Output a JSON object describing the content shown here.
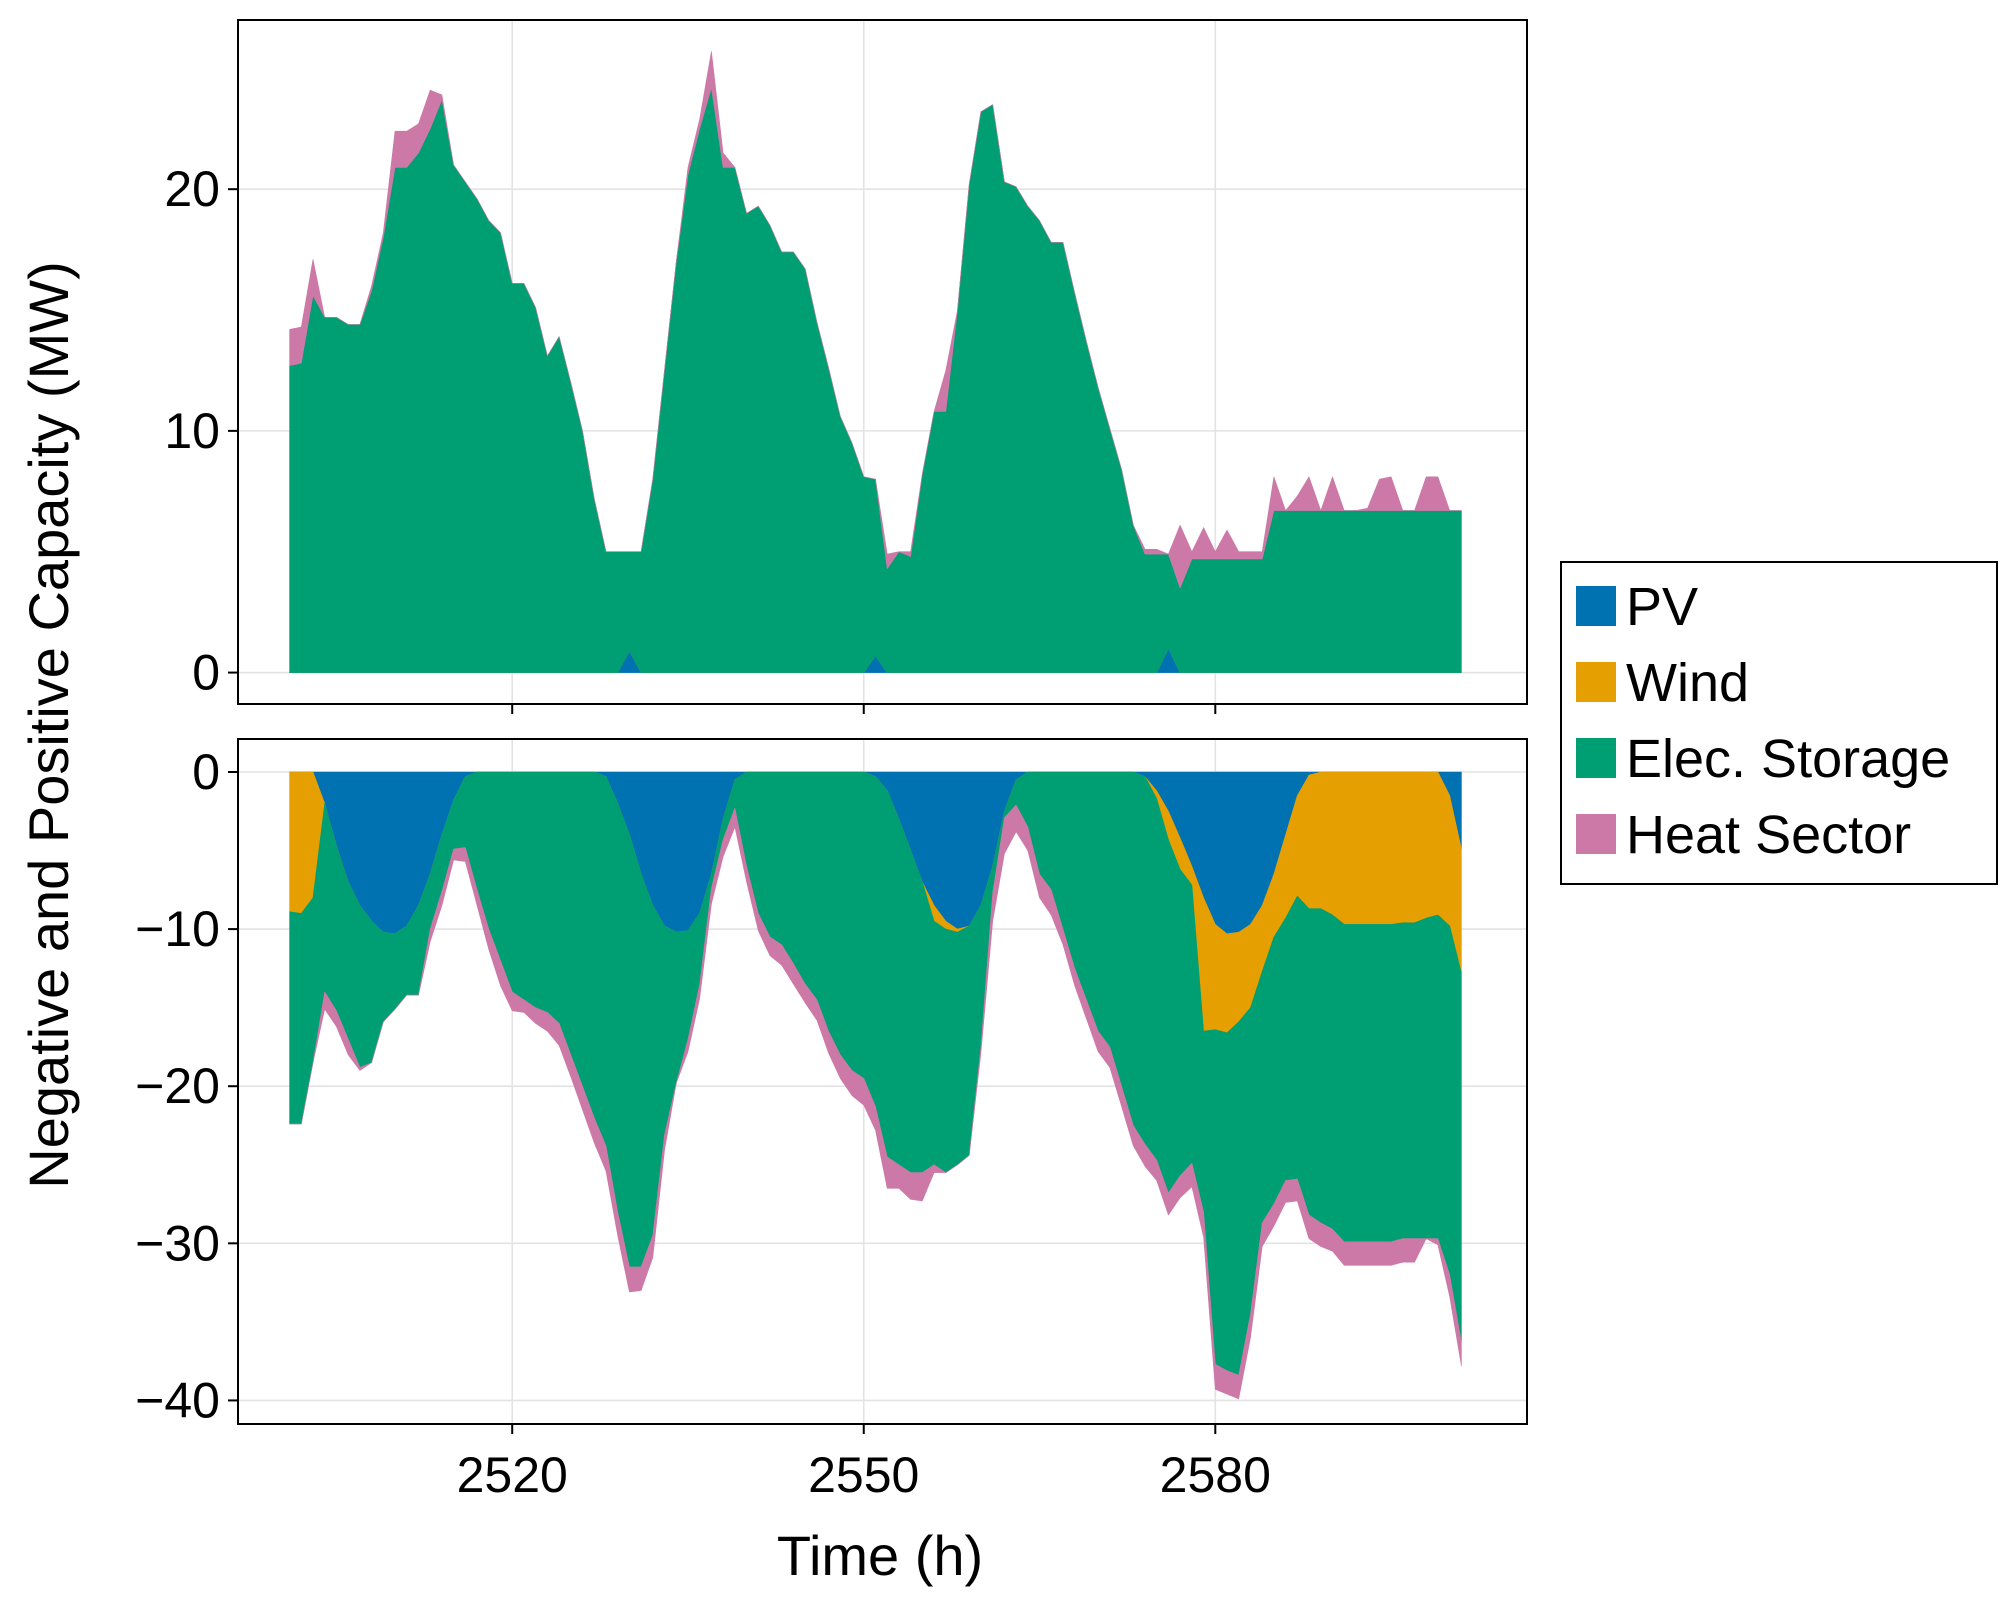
{
  "chart_data": [
    {
      "panel": "upper",
      "type": "area",
      "stacked": true,
      "xlabel": "Time (h)",
      "ylabel": "Negative and Positive Capacity (MW)",
      "xlim": [
        2496.6,
        2606.6
      ],
      "ylim": [
        -1.3,
        27
      ],
      "yticks": [
        0,
        10,
        20
      ],
      "xticks": [
        2520,
        2550,
        2580
      ],
      "grid": true,
      "x": [
        2501,
        2502,
        2503,
        2504,
        2505,
        2506,
        2507,
        2508,
        2509,
        2510,
        2511,
        2512,
        2513,
        2514,
        2515,
        2516,
        2517,
        2518,
        2519,
        2520,
        2521,
        2522,
        2523,
        2524,
        2525,
        2526,
        2527,
        2528,
        2529,
        2530,
        2531,
        2532,
        2533,
        2534,
        2535,
        2536,
        2537,
        2538,
        2539,
        2540,
        2541,
        2542,
        2543,
        2544,
        2545,
        2546,
        2547,
        2548,
        2549,
        2550,
        2551,
        2552,
        2553,
        2554,
        2555,
        2556,
        2557,
        2558,
        2559,
        2560,
        2561,
        2562,
        2563,
        2564,
        2565,
        2566,
        2567,
        2568,
        2569,
        2570,
        2571,
        2572,
        2573,
        2574,
        2575,
        2576,
        2577,
        2578,
        2579,
        2580,
        2581,
        2582,
        2583,
        2584,
        2585,
        2586,
        2587,
        2588,
        2589,
        2590,
        2591,
        2592,
        2593,
        2594,
        2595,
        2596,
        2597,
        2598,
        2599,
        2600,
        2601
      ],
      "series": [
        {
          "name": "PV",
          "color": "#0072B2",
          "values": [
            0,
            0,
            0,
            0,
            0,
            0,
            0,
            0,
            0,
            0,
            0,
            0,
            0,
            0,
            0,
            0,
            0,
            0,
            0,
            0,
            0,
            0,
            0,
            0,
            0,
            0,
            0,
            0,
            0,
            0.9,
            0,
            0,
            0,
            0,
            0,
            0,
            0,
            0,
            0,
            0,
            0,
            0,
            0,
            0,
            0,
            0,
            0,
            0,
            0,
            0,
            0.7,
            0,
            0,
            0,
            0,
            0,
            0,
            0,
            0,
            0,
            0,
            0,
            0,
            0,
            0,
            0,
            0,
            0,
            0,
            0,
            0,
            0,
            0,
            0,
            0,
            1.0,
            0,
            0,
            0,
            0,
            0,
            0,
            0,
            0,
            0,
            0,
            0,
            0,
            0,
            0,
            0,
            0,
            0,
            0,
            0,
            0,
            0,
            0,
            0,
            0,
            0
          ]
        },
        {
          "name": "Wind",
          "color": "#E69F00",
          "values": [
            0,
            0,
            0,
            0,
            0,
            0,
            0,
            0,
            0,
            0,
            0,
            0,
            0,
            0,
            0,
            0,
            0,
            0,
            0,
            0,
            0,
            0,
            0,
            0,
            0,
            0,
            0,
            0,
            0,
            0,
            0,
            0,
            0,
            0,
            0,
            0,
            0,
            0,
            0,
            0,
            0,
            0,
            0,
            0,
            0,
            0,
            0,
            0,
            0,
            0,
            0,
            0,
            0,
            0,
            0,
            0,
            0,
            0,
            0,
            0,
            0,
            0,
            0,
            0,
            0,
            0,
            0,
            0,
            0,
            0,
            0,
            0,
            0,
            0,
            0,
            0,
            0,
            0,
            0,
            0,
            0,
            0,
            0,
            0,
            0,
            0,
            0,
            0,
            0,
            0,
            0,
            0,
            0,
            0,
            0,
            0,
            0,
            0,
            0,
            0,
            0
          ]
        },
        {
          "name": "Elec. Storage",
          "color": "#009E73",
          "values": [
            12.7,
            12.8,
            15.6,
            14.7,
            14.7,
            14.4,
            14.4,
            15.8,
            18.0,
            20.9,
            20.9,
            21.5,
            22.5,
            23.7,
            21.0,
            20.3,
            19.6,
            18.7,
            18.2,
            16.1,
            16.1,
            15.1,
            13.1,
            13.9,
            12.0,
            10.0,
            7.2,
            5.0,
            5.0,
            4.1,
            5.0,
            8.0,
            12.5,
            17.0,
            20.6,
            22.5,
            24.2,
            20.9,
            20.9,
            19.0,
            19.3,
            18.5,
            17.4,
            17.4,
            16.7,
            14.5,
            12.6,
            10.6,
            9.5,
            8.1,
            7.3,
            4.3,
            5.0,
            4.8,
            8.2,
            10.8,
            10.8,
            15.0,
            20.2,
            23.2,
            23.5,
            20.3,
            20.1,
            19.3,
            18.7,
            17.8,
            17.8,
            15.7,
            13.7,
            11.8,
            10.1,
            8.4,
            6.1,
            4.9,
            4.9,
            3.9,
            3.5,
            4.7,
            4.7,
            4.7,
            4.7,
            4.7,
            4.7,
            4.7,
            6.7,
            6.7,
            6.7,
            6.7,
            6.7,
            6.7,
            6.7,
            6.7,
            6.7,
            6.7,
            6.7,
            6.7,
            6.7,
            6.7,
            6.7,
            6.7,
            6.7
          ]
        },
        {
          "name": "Heat Sector",
          "color": "#CC79A7",
          "values": [
            1.5,
            1.5,
            1.5,
            0,
            0,
            0,
            0,
            0.2,
            0.2,
            1.5,
            1.5,
            1.2,
            1.6,
            0.2,
            0,
            0,
            0,
            0,
            0,
            0,
            0,
            0,
            0,
            0,
            0,
            0,
            0,
            0,
            0,
            0,
            0,
            0,
            0,
            0,
            0.3,
            0.4,
            1.5,
            0.6,
            0,
            0,
            0,
            0,
            0,
            0,
            0,
            0,
            0,
            0,
            0,
            0,
            0,
            0.6,
            0,
            0.2,
            0,
            0,
            1.7,
            0,
            0,
            0,
            0,
            0,
            0,
            0,
            0,
            0,
            0,
            0,
            0,
            0,
            0,
            0,
            0,
            0.2,
            0.2,
            0,
            2.6,
            0.3,
            1.3,
            0.3,
            1.2,
            0.3,
            0.3,
            0.3,
            1.4,
            0,
            0.6,
            1.4,
            0,
            1.4,
            0,
            0,
            0.1,
            1.3,
            1.4,
            0,
            0,
            1.4,
            1.4,
            0,
            0
          ]
        }
      ]
    },
    {
      "panel": "lower",
      "type": "area",
      "stacked": true,
      "xlabel": "Time (h)",
      "ylabel": "Negative and Positive Capacity (MW)",
      "xlim": [
        2496.6,
        2606.6
      ],
      "ylim": [
        -41.5,
        2.1
      ],
      "yticks": [
        0,
        -10,
        -20,
        -30,
        -40
      ],
      "xticks": [
        2520,
        2550,
        2580
      ],
      "grid": true,
      "x": [
        2501,
        2502,
        2503,
        2504,
        2505,
        2506,
        2507,
        2508,
        2509,
        2510,
        2511,
        2512,
        2513,
        2514,
        2515,
        2516,
        2517,
        2518,
        2519,
        2520,
        2521,
        2522,
        2523,
        2524,
        2525,
        2526,
        2527,
        2528,
        2529,
        2530,
        2531,
        2532,
        2533,
        2534,
        2535,
        2536,
        2537,
        2538,
        2539,
        2540,
        2541,
        2542,
        2543,
        2544,
        2545,
        2546,
        2547,
        2548,
        2549,
        2550,
        2551,
        2552,
        2553,
        2554,
        2555,
        2556,
        2557,
        2558,
        2559,
        2560,
        2561,
        2562,
        2563,
        2564,
        2565,
        2566,
        2567,
        2568,
        2569,
        2570,
        2571,
        2572,
        2573,
        2574,
        2575,
        2576,
        2577,
        2578,
        2579,
        2580,
        2581,
        2582,
        2583,
        2584,
        2585,
        2586,
        2587,
        2588,
        2589,
        2590,
        2591,
        2592,
        2593,
        2594,
        2595,
        2596,
        2597,
        2598,
        2599,
        2600,
        2601
      ],
      "series": [
        {
          "name": "PV",
          "color": "#0072B2",
          "values": [
            0,
            0,
            0,
            -2.0,
            -4.7,
            -7.0,
            -8.5,
            -9.5,
            -10.2,
            -10.3,
            -9.8,
            -8.5,
            -6.5,
            -4.0,
            -1.8,
            -0.3,
            0,
            0,
            0,
            0,
            0,
            0,
            0,
            0,
            0,
            0,
            0,
            -0.3,
            -2.0,
            -4.0,
            -6.5,
            -8.5,
            -9.8,
            -10.2,
            -10.1,
            -9.0,
            -6.5,
            -3.0,
            -0.5,
            0,
            0,
            0,
            0,
            0,
            0,
            0,
            0,
            0,
            0,
            0,
            -0.3,
            -1.2,
            -3.0,
            -5.0,
            -7.0,
            -8.5,
            -9.5,
            -10.0,
            -9.8,
            -8.5,
            -6.0,
            -2.5,
            -0.5,
            0,
            0,
            0,
            0,
            0,
            0,
            0,
            0,
            0,
            0,
            -0.3,
            -1.2,
            -2.5,
            -4.2,
            -6.0,
            -8.0,
            -9.7,
            -10.3,
            -10.2,
            -9.7,
            -8.5,
            -6.5,
            -4.0,
            -1.5,
            -0.2,
            0,
            0,
            0,
            0,
            0,
            0,
            0,
            0,
            0,
            0,
            0,
            -1.5,
            -4.9
          ]
        },
        {
          "name": "Wind",
          "color": "#E69F00",
          "values": [
            -8.9,
            -9.0,
            -8.0,
            0,
            0,
            0,
            0,
            0,
            0,
            0,
            0,
            0,
            0,
            0,
            0,
            0,
            0,
            0,
            0,
            0,
            0,
            0,
            0,
            0,
            0,
            0,
            0,
            0,
            0,
            0,
            0,
            0,
            0,
            0,
            0,
            0,
            0,
            0,
            0,
            0,
            0,
            0,
            0,
            0,
            0,
            0,
            0,
            0,
            0,
            0,
            0,
            0,
            0,
            0,
            0,
            -1.0,
            -0.5,
            -0.2,
            0,
            0,
            0,
            0,
            0,
            0,
            0,
            0,
            0,
            0,
            0,
            0,
            0,
            0,
            0,
            0,
            -0.5,
            -1.8,
            -2.0,
            -1.2,
            -8.5,
            -6.7,
            -6.3,
            -5.7,
            -5.3,
            -4.2,
            -4.0,
            -5.3,
            -6.4,
            -8.5,
            -8.7,
            -9.1,
            -9.7,
            -9.7,
            -9.7,
            -9.7,
            -9.7,
            -9.6,
            -9.6,
            -9.3,
            -9.1,
            -8.3,
            -7.9
          ]
        },
        {
          "name": "Elec. Storage",
          "color": "#009E73",
          "values": [
            -13.5,
            -13.4,
            -10.5,
            -12.0,
            -10.5,
            -10.0,
            -10.3,
            -9.0,
            -5.7,
            -4.8,
            -4.4,
            -5.7,
            -3.5,
            -3.6,
            -3.1,
            -4.5,
            -7.5,
            -10.0,
            -12.0,
            -14.0,
            -14.5,
            -15.0,
            -15.3,
            -16.0,
            -18.0,
            -20.0,
            -22.0,
            -23.5,
            -26.0,
            -27.5,
            -25.0,
            -21.0,
            -13.3,
            -9.6,
            -6.9,
            -4.5,
            -0.9,
            -1.3,
            -1.8,
            -6.0,
            -9.0,
            -10.5,
            -11.0,
            -12.2,
            -13.5,
            -14.5,
            -16.5,
            -18.0,
            -19.0,
            -19.5,
            -21.0,
            -23.3,
            -22.0,
            -20.5,
            -18.5,
            -15.5,
            -15.5,
            -14.8,
            -14.6,
            -9.0,
            -1.7,
            -0.4,
            -1.6,
            -3.5,
            -6.5,
            -7.5,
            -10.0,
            -12.5,
            -14.5,
            -16.5,
            -17.5,
            -20.0,
            -22.5,
            -23.4,
            -23.0,
            -22.5,
            -19.5,
            -17.7,
            -11.5,
            -21.3,
            -21.5,
            -22.5,
            -19.5,
            -16.0,
            -17.0,
            -16.7,
            -18.0,
            -19.5,
            -20.0,
            -20.0,
            -20.2,
            -20.2,
            -20.2,
            -20.2,
            -20.2,
            -20.1,
            -20.1,
            -20.4,
            -20.6,
            -22.2,
            -23.5
          ]
        },
        {
          "name": "Heat Sector",
          "color": "#CC79A7",
          "values": [
            0,
            0,
            0,
            -1.1,
            -1.0,
            -1.0,
            -0.2,
            0,
            0,
            0,
            0,
            0,
            -0.8,
            -0.9,
            -0.7,
            -0.9,
            -1.0,
            -1.3,
            -1.6,
            -1.2,
            -0.8,
            -1.0,
            -1.2,
            -1.4,
            -1.4,
            -1.5,
            -1.6,
            -1.6,
            -1.5,
            -1.6,
            -1.5,
            -1.4,
            -1.0,
            0,
            -0.8,
            -0.9,
            -1.0,
            -1.1,
            -1.2,
            -1.0,
            -1.1,
            -1.2,
            -1.3,
            -1.3,
            -1.2,
            -1.3,
            -1.4,
            -1.5,
            -1.6,
            -1.7,
            -1.5,
            -2.0,
            -1.5,
            -1.7,
            -1.8,
            -0.5,
            0,
            0,
            0,
            -0.4,
            -1.8,
            -2.3,
            -1.7,
            -1.5,
            -1.5,
            -1.6,
            -1.0,
            -1.1,
            -1.2,
            -1.3,
            -1.3,
            -1.3,
            -1.3,
            -1.4,
            -1.3,
            -1.4,
            -1.4,
            -1.5,
            -1.6,
            -1.6,
            -1.5,
            -1.5,
            -1.5,
            -1.5,
            -1.4,
            -1.4,
            -1.4,
            -1.5,
            -1.5,
            -1.4,
            -1.5,
            -1.5,
            -1.5,
            -1.5,
            -1.5,
            -1.5,
            -1.5,
            0,
            -0.4,
            -1.4,
            -1.5
          ]
        }
      ]
    }
  ],
  "legend": {
    "position": "right",
    "entries": [
      {
        "label": "PV",
        "color": "#0072B2"
      },
      {
        "label": "Wind",
        "color": "#E69F00"
      },
      {
        "label": "Elec. Storage",
        "color": "#009E73"
      },
      {
        "label": "Heat Sector",
        "color": "#CC79A7"
      }
    ]
  }
}
